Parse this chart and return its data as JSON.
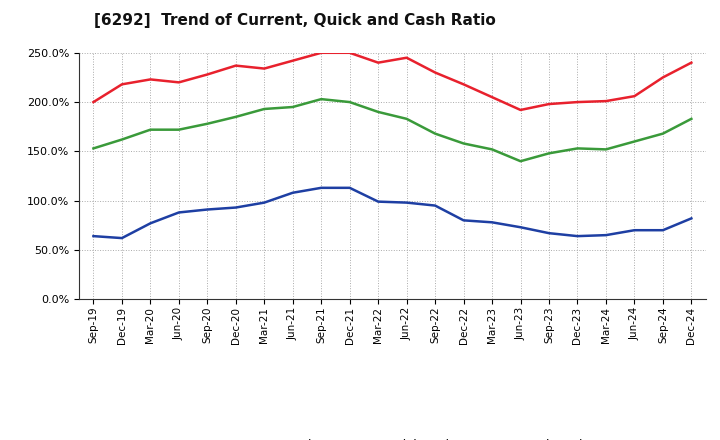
{
  "title": "[6292]  Trend of Current, Quick and Cash Ratio",
  "x_labels": [
    "Sep-19",
    "Dec-19",
    "Mar-20",
    "Jun-20",
    "Sep-20",
    "Dec-20",
    "Mar-21",
    "Jun-21",
    "Sep-21",
    "Dec-21",
    "Mar-22",
    "Jun-22",
    "Sep-22",
    "Dec-22",
    "Mar-23",
    "Jun-23",
    "Sep-23",
    "Dec-23",
    "Mar-24",
    "Jun-24",
    "Sep-24",
    "Dec-24"
  ],
  "current_ratio": [
    200,
    218,
    223,
    220,
    228,
    237,
    234,
    242,
    250,
    250,
    240,
    245,
    230,
    218,
    205,
    192,
    198,
    200,
    201,
    206,
    225,
    240
  ],
  "quick_ratio": [
    153,
    162,
    172,
    172,
    178,
    185,
    193,
    195,
    203,
    200,
    190,
    183,
    168,
    158,
    152,
    140,
    148,
    153,
    152,
    160,
    168,
    183
  ],
  "cash_ratio": [
    64,
    62,
    77,
    88,
    91,
    93,
    98,
    108,
    113,
    113,
    99,
    98,
    95,
    80,
    78,
    73,
    67,
    64,
    65,
    70,
    70,
    82
  ],
  "current_color": "#e8212d",
  "quick_color": "#3a9a3a",
  "cash_color": "#1e3fa3",
  "ylim": [
    0,
    250
  ],
  "yticks": [
    0,
    50,
    100,
    150,
    200,
    250
  ],
  "background_color": "#ffffff",
  "grid_color": "#aaaaaa",
  "line_width": 1.8
}
